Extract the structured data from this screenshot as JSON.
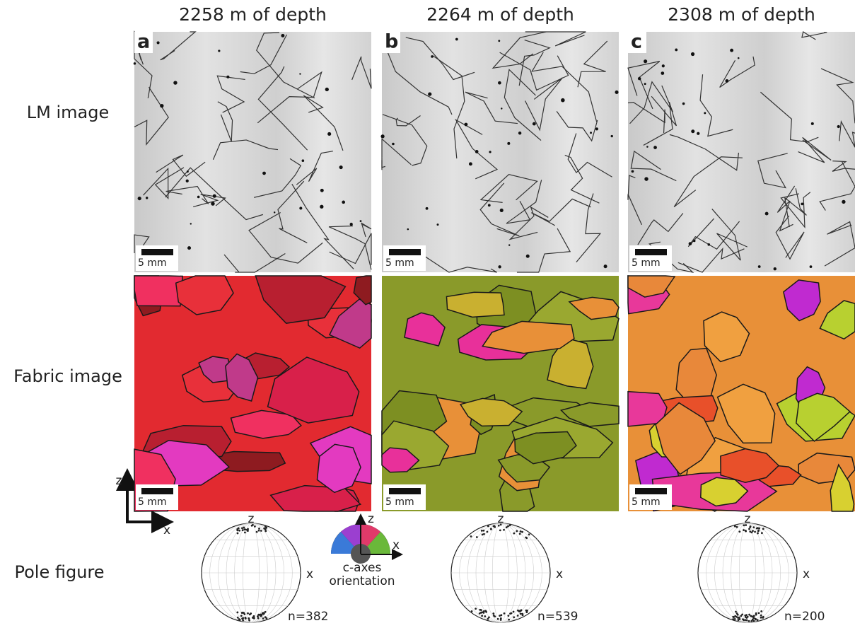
{
  "columns": [
    {
      "letter": "a",
      "depth": "2258 m of depth",
      "n": "n=382"
    },
    {
      "letter": "b",
      "depth": "2264 m of depth",
      "n": "n=539"
    },
    {
      "letter": "c",
      "depth": "2308 m of depth",
      "n": "n=200"
    }
  ],
  "rows": [
    "LM image",
    "Fabric image",
    "Pole figure"
  ],
  "scale_bar": "5 mm",
  "axes": {
    "z": "z",
    "x": "x"
  },
  "legend": {
    "lines": [
      "c-axes",
      "orientation"
    ]
  }
}
